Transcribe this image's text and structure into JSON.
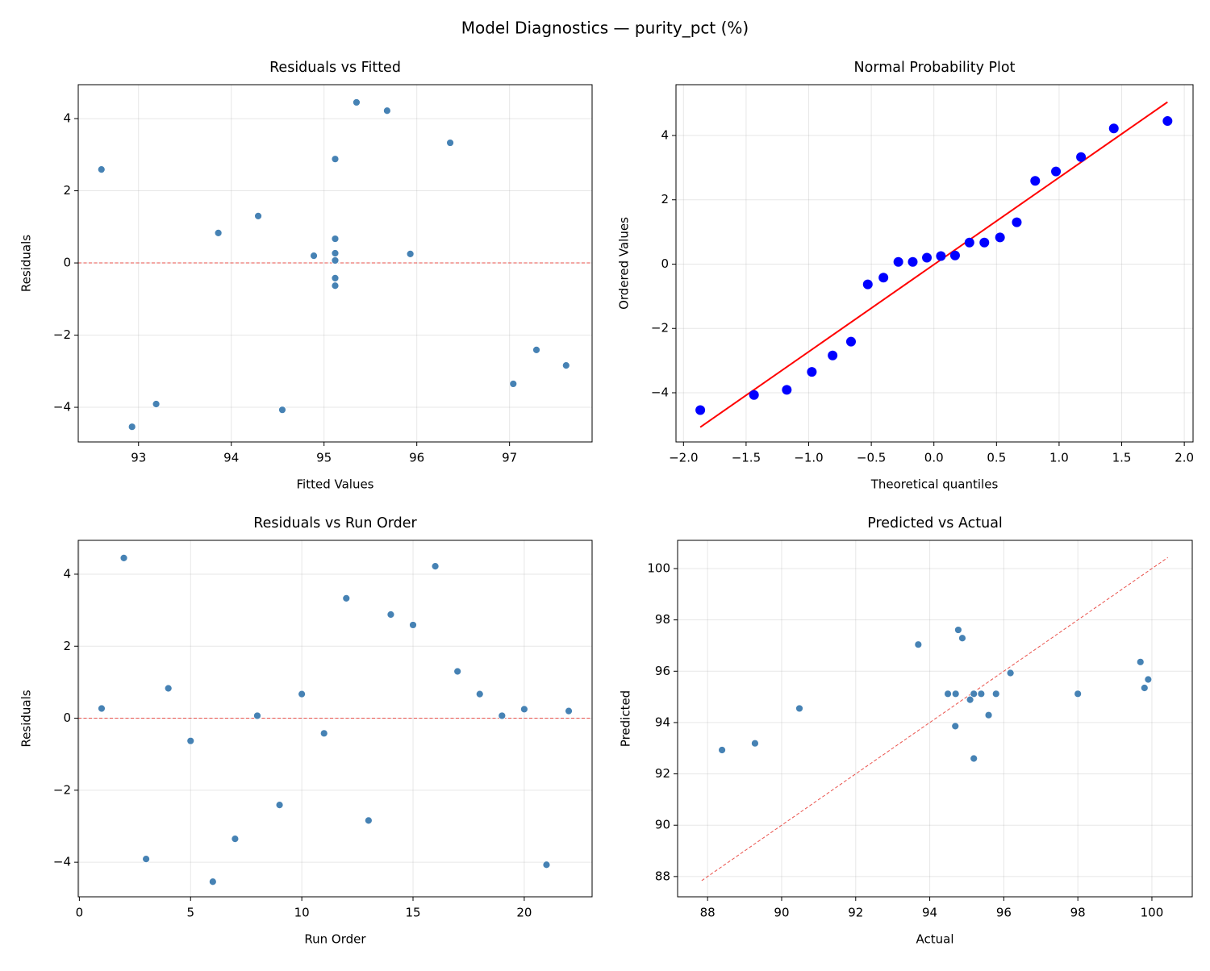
{
  "title": "Model Diagnostics — purity_pct (%)",
  "chart_data": [
    {
      "type": "scatter",
      "title": "Residuals vs Fitted",
      "xlabel": "Fitted Values",
      "ylabel": "Residuals",
      "x": [
        95.12,
        95.35,
        93.19,
        93.86,
        95.12,
        92.93,
        97.04,
        95.12,
        97.29,
        95.12,
        95.12,
        96.36,
        97.61,
        95.12,
        92.6,
        95.68,
        94.29,
        95.12,
        95.12,
        95.93,
        94.55,
        94.89
      ],
      "values": [
        0.27,
        4.45,
        -3.91,
        0.83,
        -0.63,
        -4.54,
        -3.35,
        0.07,
        -2.41,
        0.67,
        -0.42,
        3.33,
        -2.84,
        2.88,
        2.59,
        4.22,
        1.3,
        0.67,
        0.07,
        0.25,
        -4.07,
        0.2
      ],
      "color": "#4682b4",
      "xlim": [
        92.35,
        97.89
      ],
      "ylim": [
        -4.96,
        4.94
      ],
      "xticks": [
        93,
        94,
        95,
        96,
        97
      ],
      "yticks": [
        {
          "value": -4,
          "label": "−4"
        },
        {
          "value": -2,
          "label": "−2"
        },
        0,
        2,
        4
      ],
      "grid": true,
      "hline": 0,
      "hline_color": "#e8403a"
    },
    {
      "type": "scatter",
      "title": "Normal Probability Plot",
      "xlabel": "Theoretical quantiles",
      "ylabel": "Ordered Values",
      "x": [
        -1.866,
        -1.437,
        -1.175,
        -0.975,
        -0.809,
        -0.662,
        -0.528,
        -0.403,
        -0.284,
        -0.169,
        -0.056,
        0.056,
        0.169,
        0.284,
        0.403,
        0.528,
        0.662,
        0.809,
        0.975,
        1.175,
        1.437,
        1.866
      ],
      "values": [
        -4.54,
        -4.07,
        -3.91,
        -3.35,
        -2.84,
        -2.41,
        -0.63,
        -0.42,
        0.07,
        0.07,
        0.2,
        0.25,
        0.27,
        0.67,
        0.67,
        0.83,
        1.3,
        2.59,
        2.88,
        3.33,
        4.22,
        4.45
      ],
      "color": "#0000ff",
      "xlim": [
        -2.06,
        2.07
      ],
      "ylim": [
        -5.53,
        5.58
      ],
      "xticks": [
        {
          "value": -2.0,
          "label": "−2.0"
        },
        {
          "value": -1.5,
          "label": "−1.5"
        },
        {
          "value": -1.0,
          "label": "−1.0"
        },
        {
          "value": -0.5,
          "label": "−0.5"
        },
        {
          "value": 0,
          "label": "0.0"
        },
        0.5,
        {
          "value": 1,
          "label": "1.0"
        },
        1.5,
        {
          "value": 2,
          "label": "2.0"
        }
      ],
      "yticks": [
        {
          "value": -4,
          "label": "−4"
        },
        {
          "value": -2,
          "label": "−2"
        },
        0,
        2,
        4
      ],
      "grid": true,
      "fit_line": {
        "x": [
          -1.866,
          1.866
        ],
        "y": [
          -5.07,
          5.04
        ],
        "color": "#ff0000"
      }
    },
    {
      "type": "scatter",
      "title": "Residuals vs Run Order",
      "xlabel": "Run Order",
      "ylabel": "Residuals",
      "x": [
        1,
        2,
        3,
        4,
        5,
        6,
        7,
        8,
        9,
        10,
        11,
        12,
        13,
        14,
        15,
        16,
        17,
        18,
        19,
        20,
        21,
        22
      ],
      "values": [
        0.27,
        4.45,
        -3.91,
        0.83,
        -0.63,
        -4.54,
        -3.35,
        0.07,
        -2.41,
        0.67,
        -0.42,
        3.33,
        -2.84,
        2.88,
        2.59,
        4.22,
        1.3,
        0.67,
        0.07,
        0.25,
        -4.07,
        0.2
      ],
      "color": "#4682b4",
      "xlim": [
        -0.05,
        23.05
      ],
      "ylim": [
        -4.96,
        4.94
      ],
      "xticks": [
        0,
        5,
        10,
        15,
        20
      ],
      "yticks": [
        {
          "value": -4,
          "label": "−4"
        },
        {
          "value": -2,
          "label": "−2"
        },
        0,
        2,
        4
      ],
      "grid": true,
      "hline": 0,
      "hline_color": "#e8403a"
    },
    {
      "type": "scatter",
      "title": "Predicted vs Actual",
      "xlabel": "Actual",
      "ylabel": "Predicted",
      "x": [
        95.39,
        99.8,
        89.28,
        94.69,
        94.49,
        88.39,
        93.69,
        95.19,
        94.88,
        95.79,
        94.7,
        99.69,
        94.77,
        98.0,
        95.19,
        99.9,
        95.59,
        95.79,
        95.19,
        96.18,
        90.48,
        95.09
      ],
      "values": [
        95.12,
        95.35,
        93.19,
        93.86,
        95.12,
        92.93,
        97.04,
        95.12,
        97.29,
        95.12,
        95.12,
        96.36,
        97.61,
        95.12,
        92.6,
        95.68,
        94.29,
        95.12,
        95.12,
        95.93,
        94.55,
        94.89
      ],
      "color": "#4682b4",
      "xlim": [
        87.19,
        101.09
      ],
      "ylim": [
        87.21,
        101.1
      ],
      "xticks": [
        88,
        90,
        92,
        94,
        96,
        98,
        100
      ],
      "yticks": [
        88,
        90,
        92,
        94,
        96,
        98,
        100
      ],
      "grid": true,
      "reference_line": {
        "x": [
          87.84,
          100.43
        ],
        "y": [
          87.84,
          100.43
        ],
        "color": "#e8403a"
      }
    }
  ]
}
